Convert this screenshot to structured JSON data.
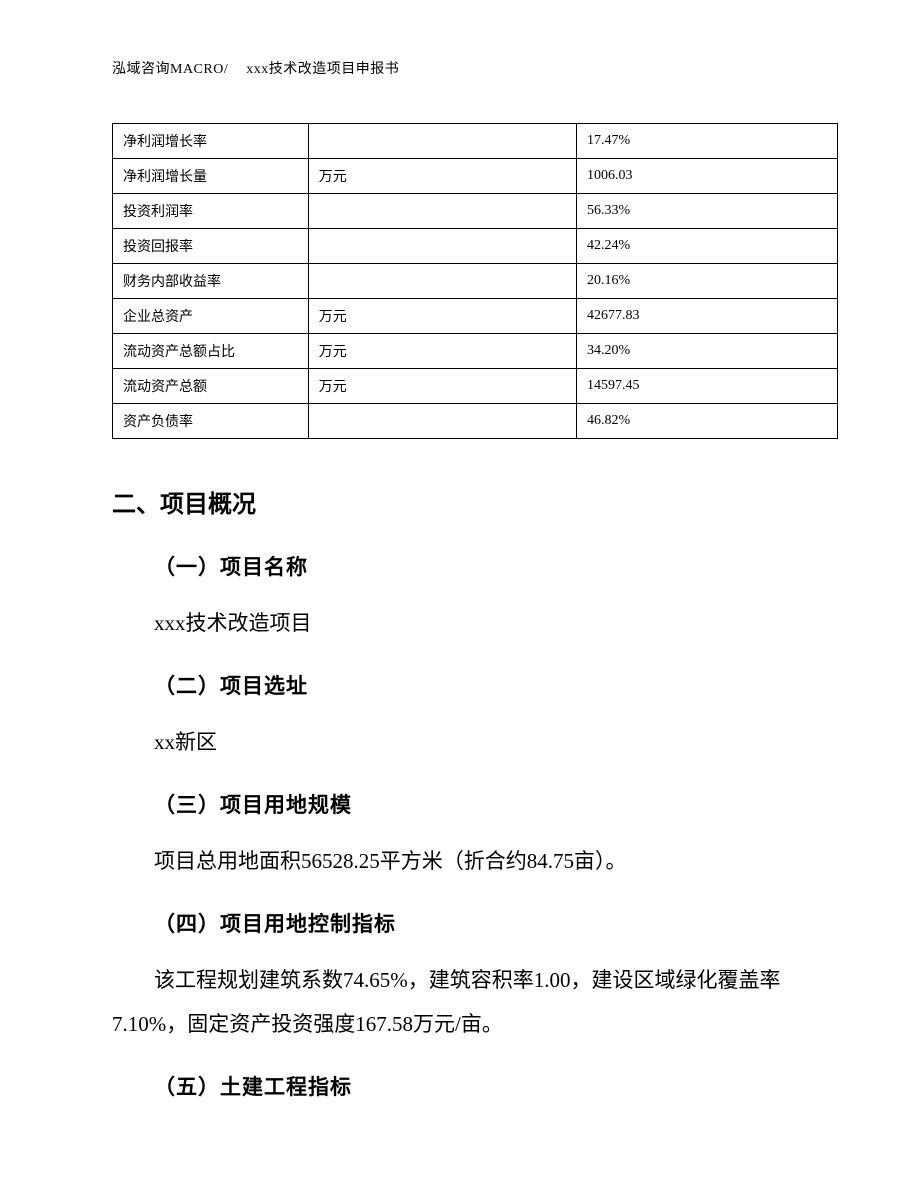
{
  "header": {
    "company": "泓域咨询MACRO/",
    "doc_title": "xxx技术改造项目申报书"
  },
  "table": {
    "rows": [
      {
        "label": "净利润增长率",
        "unit": "",
        "value": "17.47%"
      },
      {
        "label": "净利润增长量",
        "unit": "万元",
        "value": "1006.03"
      },
      {
        "label": "投资利润率",
        "unit": "",
        "value": "56.33%"
      },
      {
        "label": "投资回报率",
        "unit": "",
        "value": "42.24%"
      },
      {
        "label": "财务内部收益率",
        "unit": "",
        "value": "20.16%"
      },
      {
        "label": "企业总资产",
        "unit": "万元",
        "value": "42677.83"
      },
      {
        "label": "流动资产总额占比",
        "unit": "万元",
        "value": "34.20%"
      },
      {
        "label": "流动资产总额",
        "unit": "万元",
        "value": "14597.45"
      },
      {
        "label": "资产负债率",
        "unit": "",
        "value": "46.82%"
      }
    ]
  },
  "section": {
    "heading": "二、项目概况",
    "sub1": {
      "title": "（一）项目名称",
      "text": "xxx技术改造项目"
    },
    "sub2": {
      "title": "（二）项目选址",
      "text": "xx新区"
    },
    "sub3": {
      "title": "（三）项目用地规模",
      "text": "项目总用地面积56528.25平方米（折合约84.75亩）。"
    },
    "sub4": {
      "title": "（四）项目用地控制指标",
      "text": "该工程规划建筑系数74.65%，建筑容积率1.00，建设区域绿化覆盖率7.10%，固定资产投资强度167.58万元/亩。"
    },
    "sub5": {
      "title": "（五）土建工程指标"
    }
  }
}
